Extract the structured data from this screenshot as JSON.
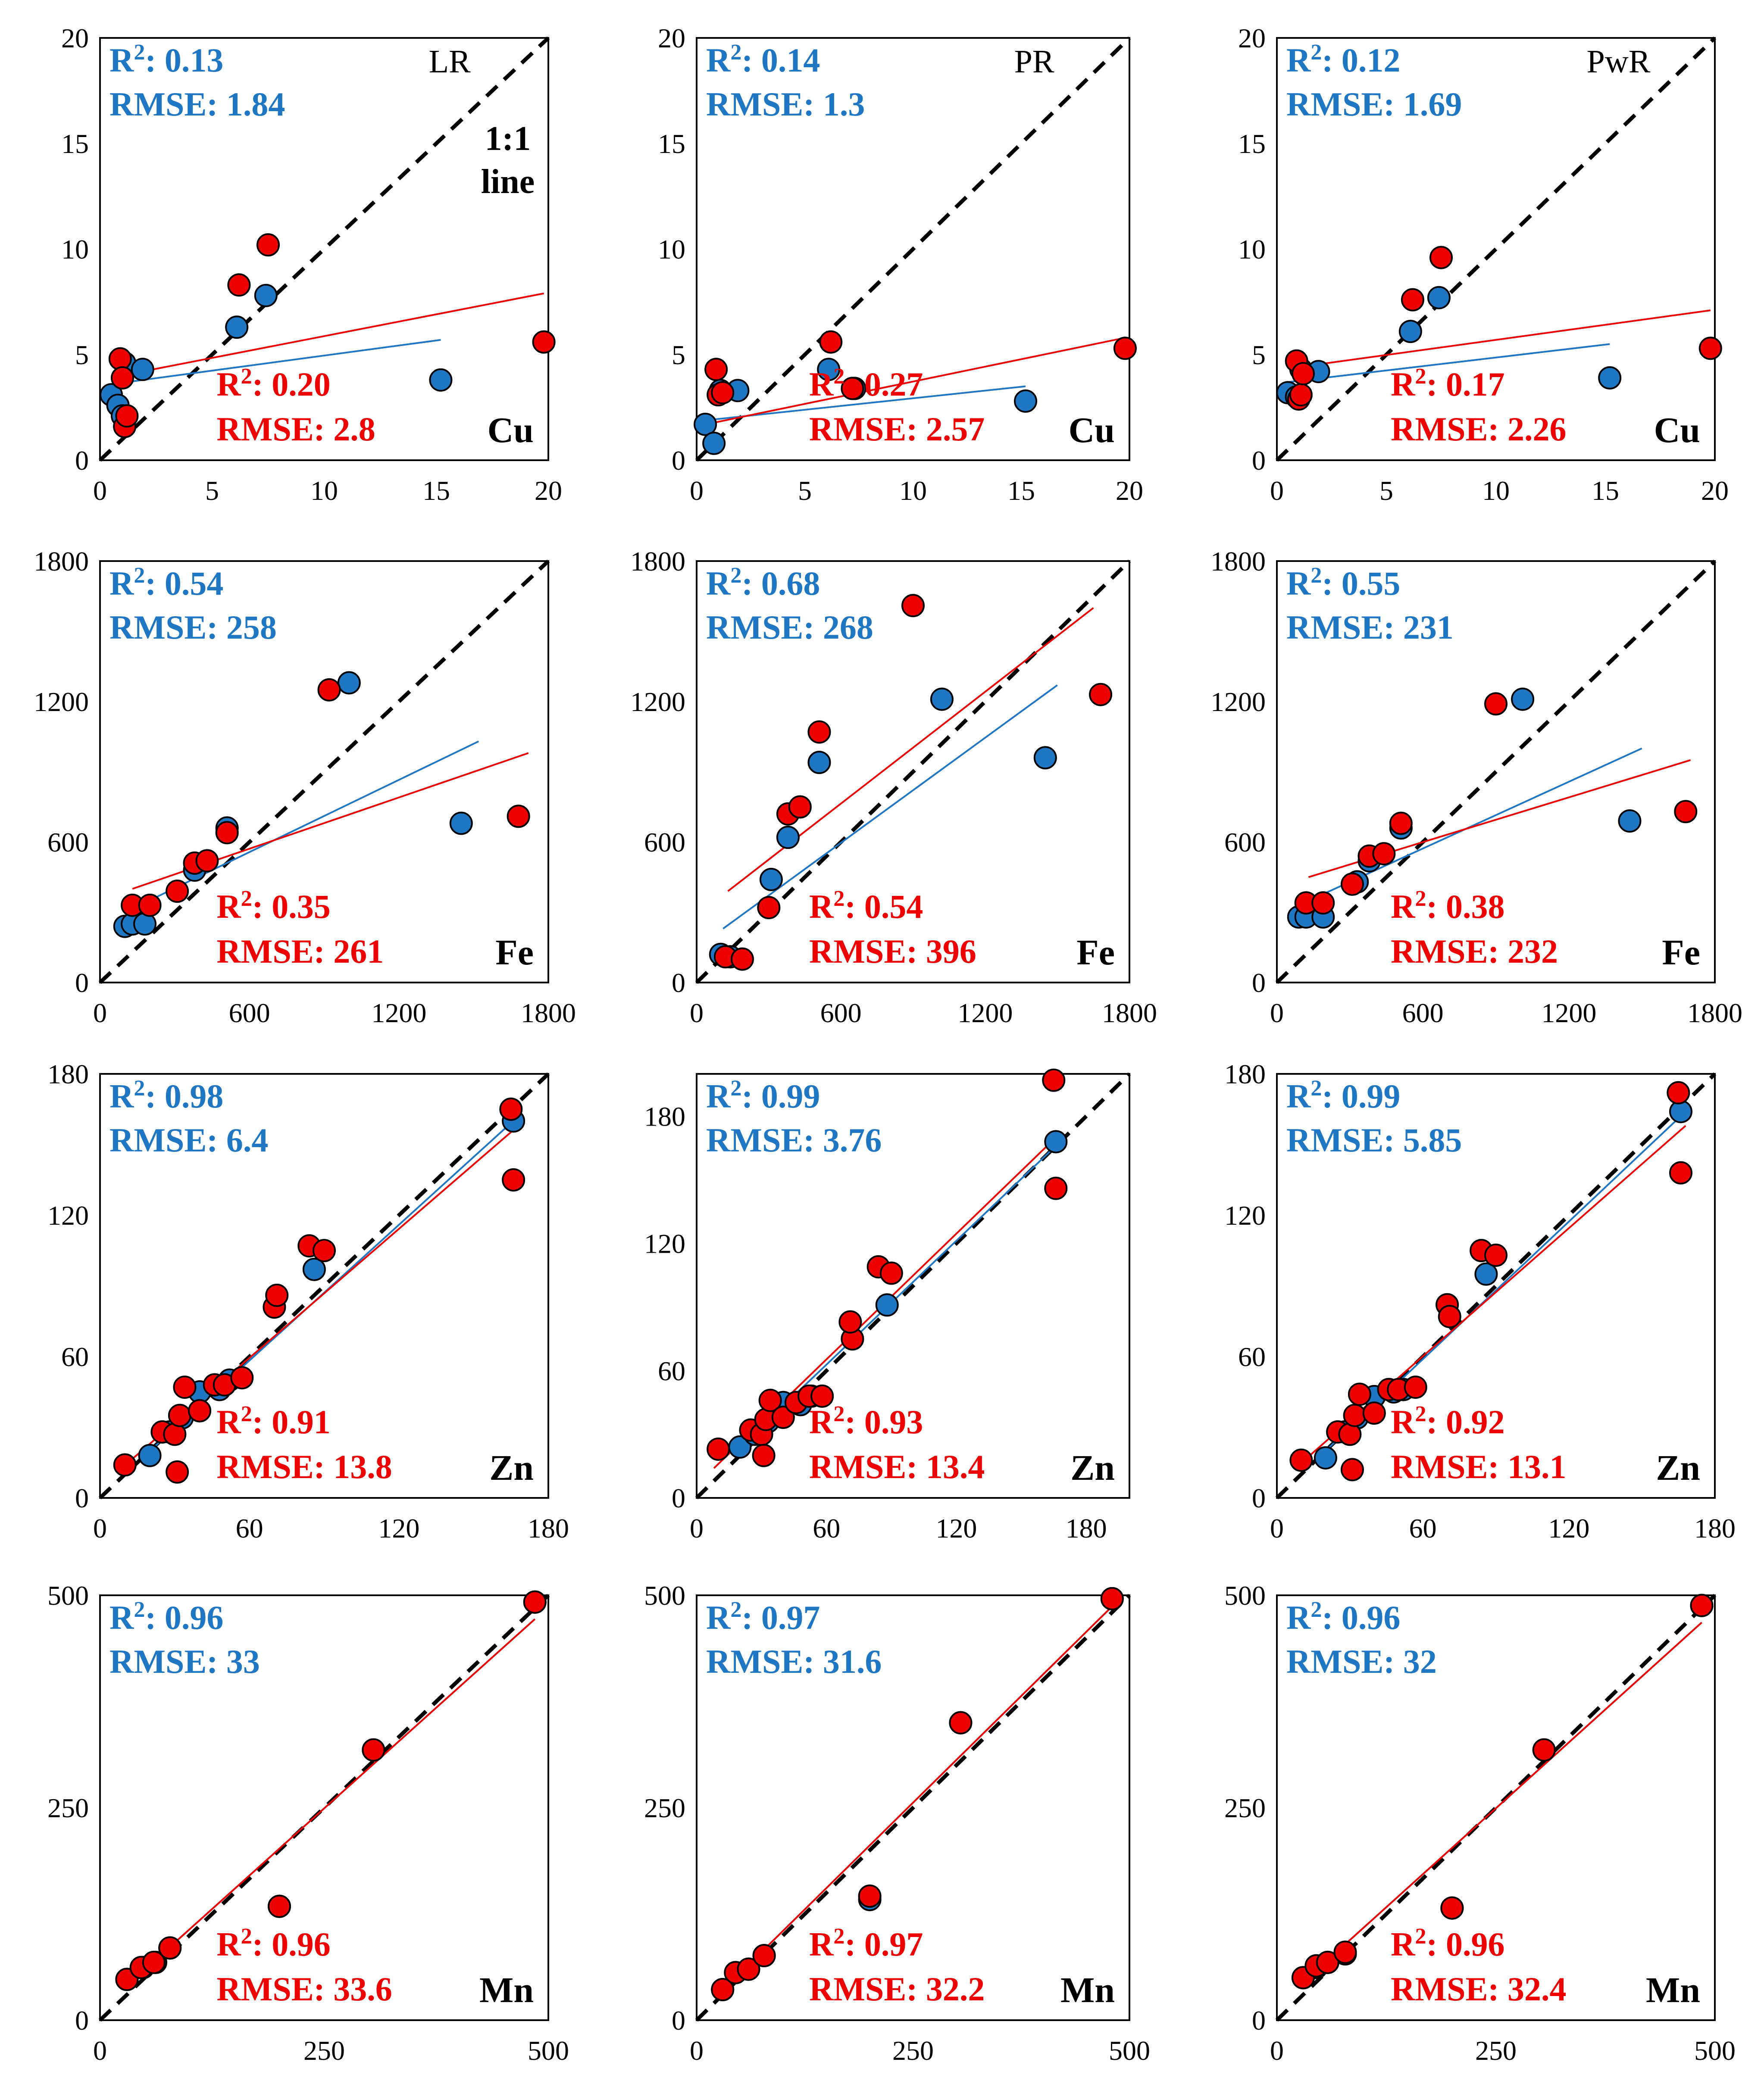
{
  "chart_data": [
    {
      "type": "scatter",
      "element": "Cu",
      "model": "LR",
      "ylim": [
        0,
        20
      ],
      "xlim": [
        0,
        20
      ],
      "yticks": [
        "0",
        "5",
        "10",
        "15",
        "20"
      ],
      "xticks": [
        "0",
        "5",
        "10",
        "15",
        "20"
      ],
      "note": [
        "1:1",
        "line"
      ],
      "blue_stats": [
        "R²: 0.13",
        "RMSE: 1.84"
      ],
      "red_stats": [
        "R²: 0.20",
        "RMSE: 2.8"
      ],
      "blue_points": [
        [
          0.5,
          3.1
        ],
        [
          0.8,
          2.6
        ],
        [
          1.0,
          2.1
        ],
        [
          1.1,
          4.6
        ],
        [
          1.9,
          4.3
        ],
        [
          6.1,
          6.3
        ],
        [
          7.4,
          7.8
        ],
        [
          15.2,
          3.8
        ]
      ],
      "red_points": [
        [
          0.9,
          4.8
        ],
        [
          1.0,
          3.9
        ],
        [
          1.1,
          1.6
        ],
        [
          1.2,
          2.1
        ],
        [
          6.2,
          8.3
        ],
        [
          7.5,
          10.2
        ],
        [
          19.8,
          5.6
        ]
      ],
      "blue_fit": [
        [
          0.5,
          3.6
        ],
        [
          15.2,
          5.7
        ]
      ],
      "red_fit": [
        [
          0.9,
          4.0
        ],
        [
          19.8,
          7.9
        ]
      ]
    },
    {
      "type": "scatter",
      "element": "Cu",
      "model": "PR",
      "ylim": [
        0,
        20
      ],
      "xlim": [
        0,
        20
      ],
      "yticks": [
        "0",
        "5",
        "10",
        "15",
        "20"
      ],
      "xticks": [
        "0",
        "5",
        "10",
        "15",
        "20"
      ],
      "blue_stats": [
        "R²: 0.14",
        "RMSE: 1.3"
      ],
      "red_stats": [
        "R²: 0.27",
        "RMSE: 2.57"
      ],
      "blue_points": [
        [
          0.4,
          1.7
        ],
        [
          0.8,
          0.8
        ],
        [
          1.1,
          3.3
        ],
        [
          1.9,
          3.3
        ],
        [
          6.1,
          4.3
        ],
        [
          7.3,
          3.4
        ],
        [
          15.2,
          2.8
        ]
      ],
      "red_points": [
        [
          0.9,
          4.3
        ],
        [
          1.0,
          3.1
        ],
        [
          1.2,
          3.2
        ],
        [
          6.2,
          5.6
        ],
        [
          7.2,
          3.4
        ],
        [
          19.8,
          5.3
        ]
      ],
      "blue_fit": [
        [
          0.5,
          1.9
        ],
        [
          15.2,
          3.5
        ]
      ],
      "red_fit": [
        [
          0.9,
          1.8
        ],
        [
          19.8,
          5.8
        ]
      ]
    },
    {
      "type": "scatter",
      "element": "Cu",
      "model": "PwR",
      "ylim": [
        0,
        20
      ],
      "xlim": [
        0,
        20
      ],
      "yticks": [
        "0",
        "5",
        "10",
        "15",
        "20"
      ],
      "xticks": [
        "0",
        "5",
        "10",
        "15",
        "20"
      ],
      "blue_stats": [
        "R²: 0.12",
        "RMSE: 1.69"
      ],
      "red_stats": [
        "R²: 0.17",
        "RMSE: 2.26"
      ],
      "blue_points": [
        [
          0.5,
          3.2
        ],
        [
          0.9,
          3.0
        ],
        [
          1.1,
          4.3
        ],
        [
          1.9,
          4.2
        ],
        [
          6.1,
          6.1
        ],
        [
          7.4,
          7.7
        ],
        [
          15.2,
          3.9
        ]
      ],
      "red_points": [
        [
          0.9,
          4.7
        ],
        [
          1.0,
          2.9
        ],
        [
          1.1,
          3.1
        ],
        [
          1.2,
          4.1
        ],
        [
          6.2,
          7.6
        ],
        [
          7.5,
          9.6
        ],
        [
          19.8,
          5.3
        ]
      ],
      "blue_fit": [
        [
          0.5,
          3.7
        ],
        [
          15.2,
          5.5
        ]
      ],
      "red_fit": [
        [
          0.9,
          4.4
        ],
        [
          19.8,
          7.1
        ]
      ]
    },
    {
      "type": "scatter",
      "element": "Fe",
      "model": "LR",
      "ylim": [
        0,
        1800
      ],
      "xlim": [
        0,
        1800
      ],
      "yticks": [
        "0",
        "600",
        "1200",
        "1800"
      ],
      "xticks": [
        "0",
        "600",
        "1200",
        "1800"
      ],
      "blue_stats": [
        "R²: 0.54",
        "RMSE: 258"
      ],
      "red_stats": [
        "R²: 0.35",
        "RMSE: 261"
      ],
      "blue_points": [
        [
          100,
          240
        ],
        [
          130,
          250
        ],
        [
          180,
          250
        ],
        [
          380,
          480
        ],
        [
          510,
          660
        ],
        [
          1000,
          1280
        ],
        [
          1450,
          680
        ]
      ],
      "red_points": [
        [
          130,
          330
        ],
        [
          200,
          330
        ],
        [
          310,
          390
        ],
        [
          380,
          510
        ],
        [
          430,
          520
        ],
        [
          510,
          640
        ],
        [
          920,
          1250
        ],
        [
          1680,
          710
        ]
      ],
      "blue_fit": [
        [
          100,
          300
        ],
        [
          1520,
          1030
        ]
      ],
      "red_fit": [
        [
          130,
          400
        ],
        [
          1720,
          980
        ]
      ]
    },
    {
      "type": "scatter",
      "element": "Fe",
      "model": "PR",
      "ylim": [
        0,
        1800
      ],
      "xlim": [
        0,
        1800
      ],
      "yticks": [
        "0",
        "600",
        "1200",
        "1800"
      ],
      "xticks": [
        "0",
        "600",
        "1200",
        "1800"
      ],
      "blue_stats": [
        "R²: 0.68",
        "RMSE: 268"
      ],
      "red_stats": [
        "R²: 0.54",
        "RMSE: 396"
      ],
      "blue_points": [
        [
          100,
          120
        ],
        [
          140,
          110
        ],
        [
          310,
          440
        ],
        [
          380,
          620
        ],
        [
          510,
          940
        ],
        [
          1020,
          1210
        ],
        [
          1450,
          960
        ]
      ],
      "red_points": [
        [
          120,
          110
        ],
        [
          190,
          100
        ],
        [
          300,
          320
        ],
        [
          380,
          720
        ],
        [
          430,
          750
        ],
        [
          510,
          1070
        ],
        [
          900,
          1610
        ],
        [
          1680,
          1230
        ]
      ],
      "blue_fit": [
        [
          110,
          230
        ],
        [
          1500,
          1270
        ]
      ],
      "red_fit": [
        [
          130,
          390
        ],
        [
          1650,
          1600
        ]
      ]
    },
    {
      "type": "scatter",
      "element": "Fe",
      "model": "PwR",
      "ylim": [
        0,
        1800
      ],
      "xlim": [
        0,
        1800
      ],
      "yticks": [
        "0",
        "600",
        "1200",
        "1800"
      ],
      "xticks": [
        "0",
        "600",
        "1200",
        "1800"
      ],
      "blue_stats": [
        "R²: 0.55",
        "RMSE: 231"
      ],
      "red_stats": [
        "R²: 0.38",
        "RMSE: 232"
      ],
      "blue_points": [
        [
          90,
          280
        ],
        [
          120,
          280
        ],
        [
          190,
          280
        ],
        [
          330,
          430
        ],
        [
          380,
          520
        ],
        [
          510,
          660
        ],
        [
          1010,
          1210
        ],
        [
          1450,
          690
        ]
      ],
      "red_points": [
        [
          120,
          340
        ],
        [
          190,
          340
        ],
        [
          310,
          420
        ],
        [
          380,
          540
        ],
        [
          440,
          550
        ],
        [
          510,
          680
        ],
        [
          900,
          1190
        ],
        [
          1680,
          730
        ]
      ],
      "blue_fit": [
        [
          90,
          330
        ],
        [
          1500,
          1000
        ]
      ],
      "red_fit": [
        [
          130,
          450
        ],
        [
          1700,
          950
        ]
      ]
    },
    {
      "type": "scatter",
      "element": "Zn",
      "model": "LR",
      "ylim": [
        0,
        180
      ],
      "xlim": [
        0,
        180
      ],
      "yticks": [
        "0",
        "60",
        "120",
        "180"
      ],
      "xticks": [
        "0",
        "60",
        "120",
        "180"
      ],
      "blue_stats": [
        "R²: 0.98",
        "RMSE: 6.4"
      ],
      "red_stats": [
        "R²: 0.91",
        "RMSE: 13.8"
      ],
      "blue_points": [
        [
          20,
          18
        ],
        [
          28,
          28
        ],
        [
          33,
          34
        ],
        [
          40,
          45
        ],
        [
          48,
          46
        ],
        [
          52,
          50
        ],
        [
          86,
          97
        ],
        [
          166,
          160
        ]
      ],
      "red_points": [
        [
          10,
          14
        ],
        [
          25,
          28
        ],
        [
          30,
          27
        ],
        [
          31,
          11
        ],
        [
          32,
          35
        ],
        [
          34,
          47
        ],
        [
          40,
          37
        ],
        [
          46,
          48
        ],
        [
          50,
          48
        ],
        [
          57,
          51
        ],
        [
          70,
          81
        ],
        [
          71,
          86
        ],
        [
          84,
          107
        ],
        [
          90,
          105
        ],
        [
          165,
          165
        ],
        [
          166,
          135
        ]
      ],
      "blue_fit": [
        [
          18,
          18
        ],
        [
          168,
          162
        ]
      ],
      "red_fit": [
        [
          8,
          12
        ],
        [
          168,
          158
        ]
      ]
    },
    {
      "type": "scatter",
      "element": "Zn",
      "model": "PR",
      "ylim": [
        0,
        200
      ],
      "xlim": [
        0,
        200
      ],
      "yticks": [
        "0",
        "60",
        "120",
        "180"
      ],
      "xticks": [
        "0",
        "60",
        "120",
        "180"
      ],
      "blue_stats": [
        "R²: 0.99",
        "RMSE: 3.76"
      ],
      "red_stats": [
        "R²: 0.93",
        "RMSE: 13.4"
      ],
      "blue_points": [
        [
          20,
          24
        ],
        [
          27,
          30
        ],
        [
          33,
          36
        ],
        [
          40,
          45
        ],
        [
          48,
          44
        ],
        [
          53,
          48
        ],
        [
          88,
          91
        ],
        [
          166,
          168
        ]
      ],
      "red_points": [
        [
          10,
          23
        ],
        [
          25,
          32
        ],
        [
          30,
          30
        ],
        [
          31,
          20
        ],
        [
          32,
          37
        ],
        [
          34,
          46
        ],
        [
          40,
          38
        ],
        [
          46,
          45
        ],
        [
          52,
          48
        ],
        [
          58,
          48
        ],
        [
          72,
          75
        ],
        [
          71,
          83
        ],
        [
          84,
          109
        ],
        [
          90,
          106
        ],
        [
          165,
          197
        ],
        [
          166,
          146
        ]
      ],
      "blue_fit": [
        [
          18,
          22
        ],
        [
          168,
          168
        ]
      ],
      "red_fit": [
        [
          8,
          14
        ],
        [
          168,
          172
        ]
      ]
    },
    {
      "type": "scatter",
      "element": "Zn",
      "model": "PwR",
      "ylim": [
        0,
        180
      ],
      "xlim": [
        0,
        180
      ],
      "yticks": [
        "0",
        "60",
        "120",
        "180"
      ],
      "xticks": [
        "0",
        "60",
        "120",
        "180"
      ],
      "blue_stats": [
        "R²: 0.99",
        "RMSE: 5.85"
      ],
      "red_stats": [
        "R²: 0.92",
        "RMSE: 13.1"
      ],
      "blue_points": [
        [
          20,
          17
        ],
        [
          28,
          28
        ],
        [
          33,
          34
        ],
        [
          40,
          43
        ],
        [
          48,
          45
        ],
        [
          52,
          46
        ],
        [
          86,
          95
        ],
        [
          166,
          164
        ]
      ],
      "red_points": [
        [
          10,
          16
        ],
        [
          25,
          28
        ],
        [
          30,
          27
        ],
        [
          31,
          12
        ],
        [
          32,
          35
        ],
        [
          34,
          44
        ],
        [
          40,
          36
        ],
        [
          46,
          46
        ],
        [
          50,
          46
        ],
        [
          57,
          47
        ],
        [
          70,
          82
        ],
        [
          71,
          77
        ],
        [
          84,
          105
        ],
        [
          90,
          103
        ],
        [
          165,
          172
        ],
        [
          166,
          138
        ]
      ],
      "blue_fit": [
        [
          18,
          18
        ],
        [
          168,
          164
        ]
      ],
      "red_fit": [
        [
          8,
          13
        ],
        [
          168,
          158
        ]
      ]
    },
    {
      "type": "scatter",
      "element": "Mn",
      "model": "LR",
      "ylim": [
        0,
        500
      ],
      "xlim": [
        0,
        500
      ],
      "yticks": [
        "0",
        "250",
        "500"
      ],
      "xticks": [
        "0",
        "250",
        "500"
      ],
      "blue_stats": [
        "R²: 0.96",
        "RMSE: 33"
      ],
      "red_stats": [
        "R²: 0.96",
        "RMSE: 33.6"
      ],
      "blue_points": [
        [
          30,
          48
        ],
        [
          48,
          62
        ],
        [
          62,
          68
        ],
        [
          78,
          85
        ],
        [
          200,
          134
        ],
        [
          305,
          318
        ],
        [
          485,
          492
        ]
      ],
      "red_points": [
        [
          30,
          48
        ],
        [
          46,
          62
        ],
        [
          60,
          68
        ],
        [
          78,
          85
        ],
        [
          200,
          134
        ],
        [
          305,
          318
        ],
        [
          485,
          492
        ]
      ],
      "blue_fit": [
        [
          25,
          36
        ],
        [
          485,
          472
        ]
      ],
      "red_fit": [
        [
          25,
          36
        ],
        [
          485,
          472
        ]
      ]
    },
    {
      "type": "scatter",
      "element": "Mn",
      "model": "PR",
      "ylim": [
        0,
        500
      ],
      "xlim": [
        0,
        500
      ],
      "yticks": [
        "0",
        "250",
        "500"
      ],
      "xticks": [
        "0",
        "250",
        "500"
      ],
      "blue_stats": [
        "R²: 0.97",
        "RMSE: 31.6"
      ],
      "red_stats": [
        "R²: 0.97",
        "RMSE: 32.2"
      ],
      "blue_points": [
        [
          30,
          36
        ],
        [
          45,
          56
        ],
        [
          60,
          60
        ],
        [
          78,
          76
        ],
        [
          200,
          142
        ],
        [
          305,
          350
        ],
        [
          480,
          496
        ]
      ],
      "red_points": [
        [
          30,
          36
        ],
        [
          45,
          56
        ],
        [
          60,
          60
        ],
        [
          78,
          76
        ],
        [
          200,
          146
        ],
        [
          305,
          350
        ],
        [
          480,
          496
        ]
      ],
      "blue_fit": [
        [
          25,
          30
        ],
        [
          485,
          492
        ]
      ],
      "red_fit": [
        [
          25,
          30
        ],
        [
          485,
          492
        ]
      ]
    },
    {
      "type": "scatter",
      "element": "Mn",
      "model": "PwR",
      "ylim": [
        0,
        500
      ],
      "xlim": [
        0,
        500
      ],
      "yticks": [
        "0",
        "250",
        "500"
      ],
      "xticks": [
        "0",
        "250",
        "500"
      ],
      "blue_stats": [
        "R²: 0.96",
        "RMSE: 32"
      ],
      "red_stats": [
        "R²: 0.96",
        "RMSE: 32.4"
      ],
      "blue_points": [
        [
          30,
          50
        ],
        [
          45,
          62
        ],
        [
          58,
          68
        ],
        [
          78,
          78
        ],
        [
          200,
          132
        ],
        [
          305,
          318
        ],
        [
          485,
          488
        ]
      ],
      "red_points": [
        [
          30,
          50
        ],
        [
          45,
          64
        ],
        [
          58,
          68
        ],
        [
          78,
          80
        ],
        [
          200,
          132
        ],
        [
          305,
          318
        ],
        [
          485,
          488
        ]
      ],
      "blue_fit": [
        [
          25,
          40
        ],
        [
          485,
          468
        ]
      ],
      "red_fit": [
        [
          25,
          40
        ],
        [
          485,
          468
        ]
      ]
    }
  ]
}
